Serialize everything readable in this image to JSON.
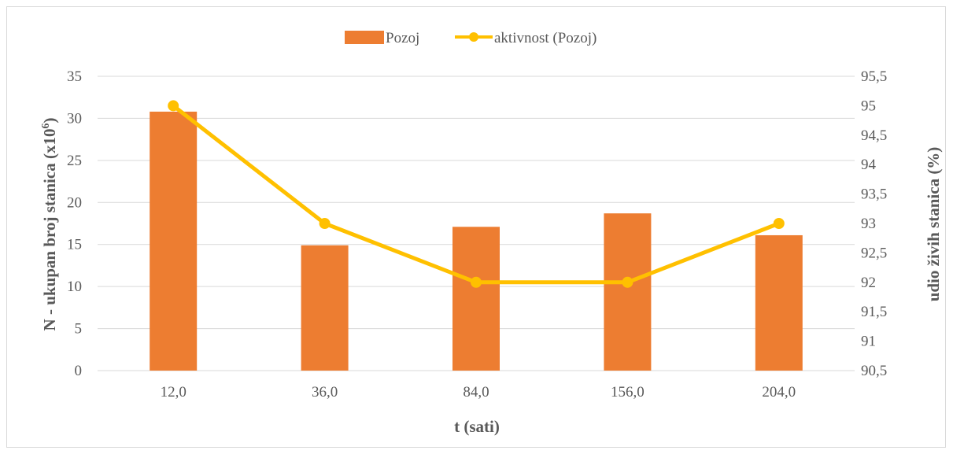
{
  "chart_data": {
    "type": "bar",
    "categories": [
      "12,0",
      "36,0",
      "84,0",
      "156,0",
      "204,0"
    ],
    "series": [
      {
        "name": "Pozoj",
        "type": "bar",
        "axis": "left",
        "values": [
          30.8,
          14.9,
          17.1,
          18.7,
          16.1
        ]
      },
      {
        "name": "aktivnost (Pozoj)",
        "type": "line",
        "axis": "right",
        "values": [
          95,
          93,
          92,
          92,
          93
        ]
      }
    ],
    "xlabel": "t (sati)",
    "ylabel_main": "N - ukupan broj stanica (x10",
    "ylabel_sup": "6",
    "ylabel_end": ")",
    "y2label": "udio živih stanica (%)",
    "ylim": [
      0,
      35
    ],
    "y_ticks": [
      "0",
      "5",
      "10",
      "15",
      "20",
      "25",
      "30",
      "35"
    ],
    "y2lim": [
      90.5,
      95.5
    ],
    "y2_ticks": [
      "90,5",
      "91",
      "91,5",
      "92",
      "92,5",
      "93",
      "93,5",
      "94",
      "94,5",
      "95",
      "95,5"
    ],
    "grid": true,
    "legend_position": "top",
    "colors": {
      "bar": "#ED7D31",
      "line": "#FFC000",
      "grid": "#d9d9d9",
      "text": "#595959"
    }
  }
}
